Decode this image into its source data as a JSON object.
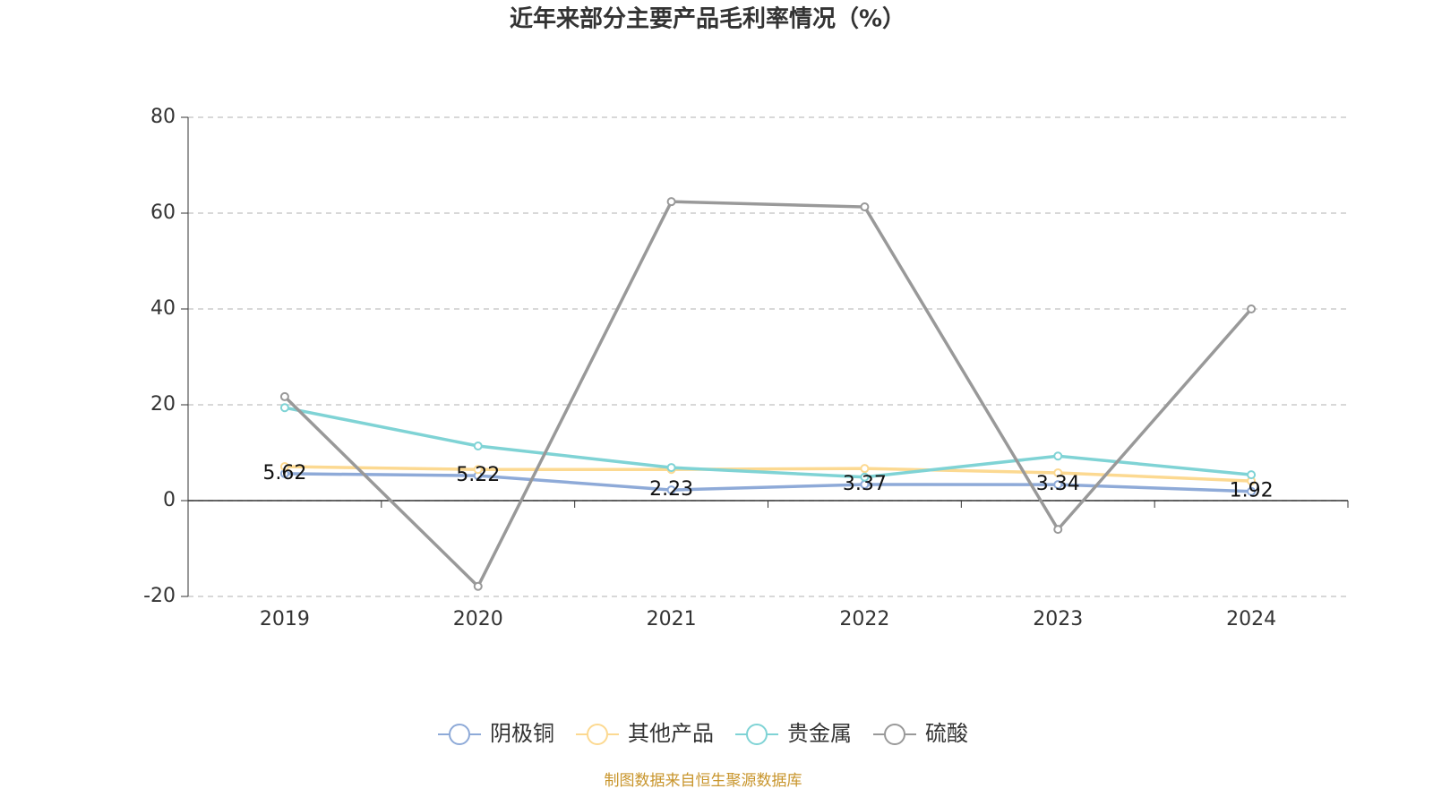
{
  "chart_data": {
    "type": "line",
    "title": "近年来部分主要产品毛利率情况（%）",
    "source": "制图数据来自恒生聚源数据库",
    "categories": [
      "2019",
      "2020",
      "2021",
      "2022",
      "2023",
      "2024"
    ],
    "series": [
      {
        "name": "阴极铜",
        "color": "#8eaad8",
        "values": [
          5.62,
          5.22,
          2.23,
          3.37,
          3.34,
          1.92
        ],
        "data_labels": true
      },
      {
        "name": "其他产品",
        "color": "#fcd991",
        "values": [
          7.1,
          6.5,
          6.5,
          6.7,
          5.8,
          4.1
        ]
      },
      {
        "name": "贵金属",
        "color": "#7fd3d5",
        "values": [
          19.4,
          11.4,
          6.9,
          4.9,
          9.3,
          5.4
        ]
      },
      {
        "name": "硫酸",
        "color": "#999999",
        "values": [
          21.7,
          -17.9,
          62.4,
          61.3,
          -6.0,
          40.0
        ]
      }
    ],
    "ylim": [
      -20,
      80
    ],
    "yticks": [
      -20,
      0,
      20,
      40,
      60,
      80
    ],
    "grid": true,
    "legend": "bottom"
  }
}
